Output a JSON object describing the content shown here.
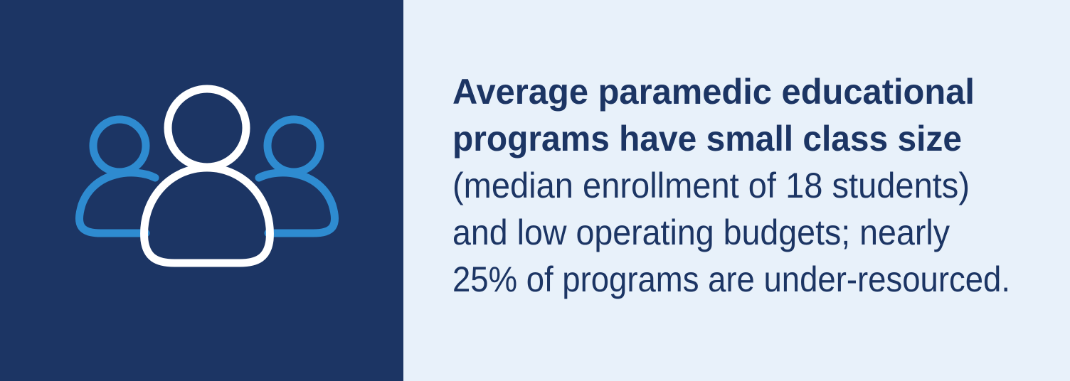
{
  "headline": [
    "Average paramedic educational",
    "programs have small class size"
  ],
  "body": [
    "(median enrollment of 18 students)",
    "and low operating budgets; nearly",
    "25% of programs are under-resourced."
  ]
}
